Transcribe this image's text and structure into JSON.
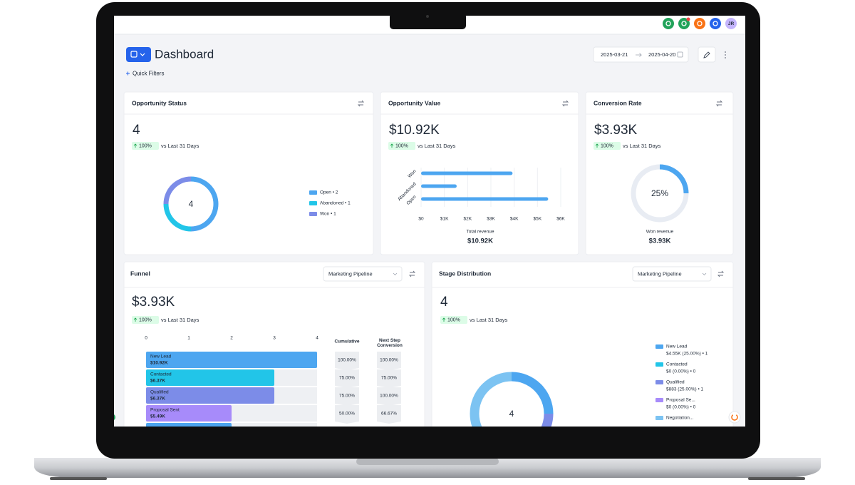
{
  "top_bar": {
    "avatar": "JR"
  },
  "header": {
    "title": "Dashboard",
    "quick_filters": "Quick Filters",
    "date_from": "2025-03-21",
    "date_to": "2025-04-20"
  },
  "widgets": {
    "opportunity_status": {
      "title": "Opportunity Status",
      "value": "4",
      "change": "100%",
      "comparison": "vs Last 31 Days",
      "chart_data": {
        "type": "donut",
        "center_label": "4",
        "series": [
          {
            "label": "Open • 2",
            "value": 2,
            "color": "#4da6f0"
          },
          {
            "label": "Abandoned • 1",
            "value": 1,
            "color": "#22c5e8"
          },
          {
            "label": "Won • 1",
            "value": 1,
            "color": "#7c8ce8"
          }
        ]
      }
    },
    "opportunity_value": {
      "title": "Opportunity Value",
      "value": "$10.92K",
      "change": "100%",
      "comparison": "vs Last 31 Days",
      "chart_data": {
        "type": "bar",
        "orientation": "horizontal",
        "categories": [
          "Won",
          "Abandoned",
          "Open"
        ],
        "values": [
          3930,
          1530,
          5460
        ],
        "color": "#4da6f0",
        "xlim": [
          0,
          6000
        ],
        "xticks": [
          {
            "value": 0,
            "label": "$0"
          },
          {
            "value": 1000,
            "label": "$1K"
          },
          {
            "value": 2000,
            "label": "$2K"
          },
          {
            "value": 3000,
            "label": "$3K"
          },
          {
            "value": 4000,
            "label": "$4K"
          },
          {
            "value": 5000,
            "label": "$5K"
          },
          {
            "value": 6000,
            "label": "$6K"
          }
        ],
        "grid": true,
        "x_label": "Total revenue",
        "total": "$10.92K"
      }
    },
    "conversion_rate": {
      "title": "Conversion Rate",
      "value": "$3.93K",
      "change": "100%",
      "comparison": "vs Last 31 Days",
      "chart_data": {
        "type": "gauge",
        "value": 25,
        "value_label": "25%",
        "color": "#4da6f0",
        "caption": "Won revenue",
        "caption_value": "$3.93K"
      }
    },
    "funnel": {
      "title": "Funnel",
      "pipeline": "Marketing Pipeline",
      "value": "$3.93K",
      "change": "100%",
      "comparison": "vs Last 31 Days",
      "chart_data": {
        "type": "funnel",
        "categories": [
          "New Lead",
          "Contacted",
          "Qualified",
          "Proposal Sent",
          null
        ],
        "values": [
          4,
          3,
          3,
          2,
          2
        ],
        "amounts": [
          "$10.92K",
          "$6.37K",
          "$6.37K",
          "$5.49K",
          null
        ],
        "colors": [
          "#4da6f0",
          "#22c5e8",
          "#7c8ce8",
          "#a78bfa",
          "#4da6f0"
        ],
        "xlim": [
          0,
          4
        ],
        "xticks": [
          0,
          1,
          2,
          3,
          4
        ]
      },
      "columns": {
        "cumulative_header": "Cumulative",
        "next_header": "Next Step Conversion",
        "cumulative": [
          "100.00%",
          "75.00%",
          "75.00%",
          "50.00%"
        ],
        "next": [
          "100.00%",
          "75.00%",
          "100.00%",
          "66.67%"
        ]
      }
    },
    "stage_distribution": {
      "title": "Stage Distribution",
      "pipeline": "Marketing Pipeline",
      "value": "4",
      "change": "100%",
      "comparison": "vs Last 31 Days",
      "chart_data": {
        "type": "donut",
        "center_label": "4",
        "series": [
          {
            "name": "New Lead",
            "detail": "$4.55K (25.00%) • 1",
            "value": 1,
            "color": "#4da6f0"
          },
          {
            "name": "Contacted",
            "detail": "$0 (0.00%) • 0",
            "value": 0,
            "color": "#22c5e8"
          },
          {
            "name": "Qualified",
            "detail": "$883 (25.00%) • 1",
            "value": 1,
            "color": "#7c8ce8"
          },
          {
            "name": "Proposal Se...",
            "detail": "$0 (0.00%) • 0",
            "value": 0,
            "color": "#a78bfa"
          },
          {
            "name": "Negotiation...",
            "value": 2,
            "color": "#7cc3f2"
          }
        ]
      }
    }
  }
}
